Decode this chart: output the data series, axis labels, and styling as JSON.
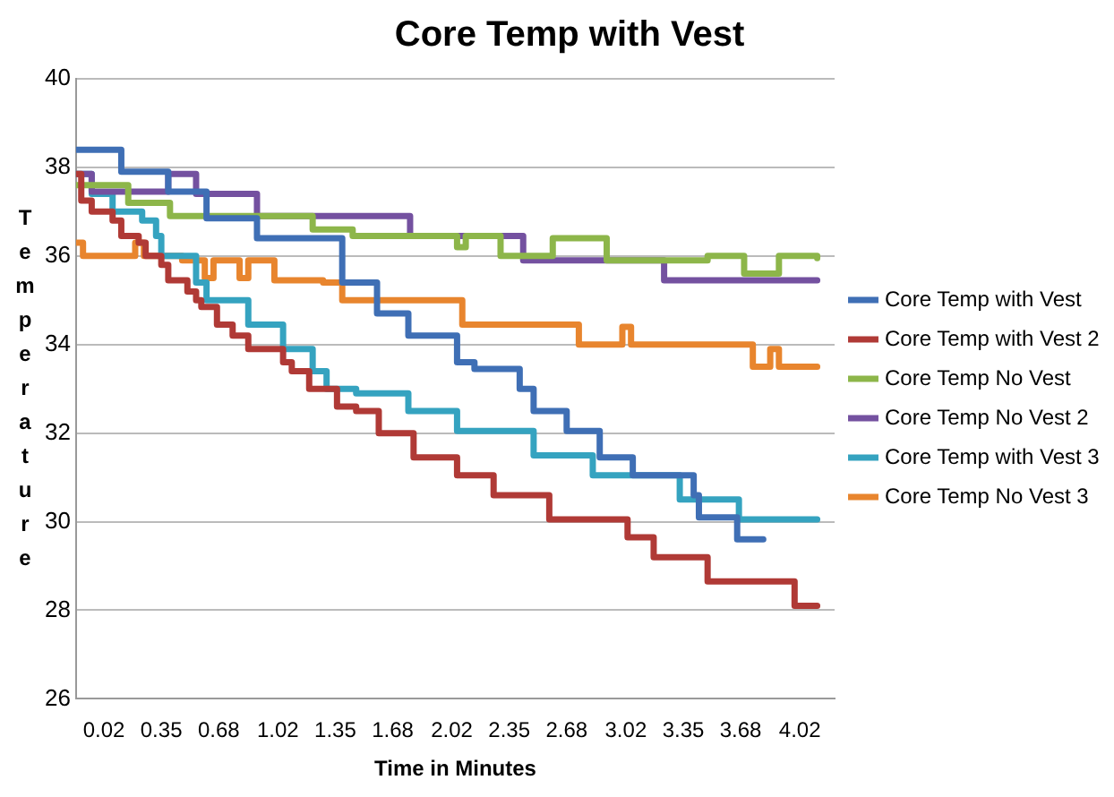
{
  "chart_data": {
    "type": "step",
    "title": "Core Temp with Vest",
    "xlabel": "Time in Minutes",
    "ylabel": "Temperature",
    "xlim": [
      -0.14,
      4.22
    ],
    "xticks": [
      0.02,
      0.35,
      0.68,
      1.02,
      1.35,
      1.68,
      2.02,
      2.35,
      2.68,
      3.02,
      3.35,
      3.68,
      4.02
    ],
    "ylim": [
      26,
      40
    ],
    "yticks": [
      26,
      28,
      30,
      32,
      34,
      36,
      38,
      40
    ],
    "grid": "y",
    "legend": "right",
    "marker": "none",
    "line_style": "solid",
    "series": [
      {
        "name": "Core Temp with Vest",
        "color": "#3f6fb5",
        "x": [
          -0.14,
          0.12,
          0.39,
          0.61,
          0.9,
          1.39,
          1.59,
          1.77,
          2.05,
          2.15,
          2.41,
          2.49,
          2.68,
          2.87,
          3.06,
          3.41,
          3.44,
          3.66,
          3.81
        ],
        "values": [
          38.4,
          37.9,
          37.45,
          36.85,
          36.4,
          35.4,
          34.7,
          34.2,
          33.6,
          33.45,
          33.0,
          32.5,
          32.05,
          31.45,
          31.05,
          30.6,
          30.1,
          29.6,
          29.6
        ]
      },
      {
        "name": "Core Temp with Vest 2",
        "color": "#b03a36",
        "x": [
          -0.14,
          -0.11,
          -0.05,
          0.07,
          0.12,
          0.22,
          0.26,
          0.35,
          0.39,
          0.5,
          0.55,
          0.58,
          0.67,
          0.76,
          0.85,
          1.05,
          1.1,
          1.2,
          1.36,
          1.47,
          1.6,
          1.8,
          2.05,
          2.26,
          2.58,
          3.03,
          3.18,
          3.49,
          3.99,
          4.12
        ],
        "values": [
          37.85,
          37.25,
          37.0,
          36.8,
          36.45,
          36.3,
          36.0,
          35.8,
          35.45,
          35.2,
          35.0,
          34.85,
          34.45,
          34.2,
          33.9,
          33.6,
          33.4,
          33.0,
          32.6,
          32.5,
          32.0,
          31.45,
          31.05,
          30.6,
          30.05,
          29.65,
          29.2,
          28.65,
          28.1,
          28.1
        ]
      },
      {
        "name": "Core Temp No Vest",
        "color": "#8db64a",
        "x": [
          -0.14,
          0.16,
          0.4,
          1.22,
          1.45,
          2.05,
          2.1,
          2.3,
          2.6,
          2.91,
          3.49,
          3.7,
          3.9,
          4.12
        ],
        "values": [
          37.6,
          37.2,
          36.9,
          36.6,
          36.45,
          36.2,
          36.45,
          36.0,
          36.4,
          35.9,
          36.0,
          35.6,
          36.0,
          35.95
        ]
      },
      {
        "name": "Core Temp No Vest 2",
        "color": "#7451a0",
        "x": [
          -0.14,
          -0.05,
          0.39,
          0.55,
          0.9,
          1.78,
          2.43,
          3.24,
          4.12
        ],
        "values": [
          37.85,
          37.45,
          37.85,
          37.4,
          36.9,
          36.45,
          35.9,
          35.45,
          35.45
        ]
      },
      {
        "name": "Core Temp with Vest 3",
        "color": "#35a3c0",
        "x": [
          -0.14,
          -0.05,
          0.07,
          0.24,
          0.32,
          0.35,
          0.55,
          0.61,
          0.85,
          1.05,
          1.22,
          1.3,
          1.47,
          1.77,
          2.05,
          2.49,
          2.83,
          3.33,
          3.67,
          4.12
        ],
        "values": [
          37.85,
          37.4,
          37.0,
          36.8,
          36.45,
          36.0,
          35.4,
          35.0,
          34.45,
          33.9,
          33.4,
          33.0,
          32.9,
          32.5,
          32.05,
          31.5,
          31.05,
          30.5,
          30.05,
          30.05
        ]
      },
      {
        "name": "Core Temp No Vest 3",
        "color": "#e8852e",
        "x": [
          -0.14,
          -0.1,
          0.2,
          0.25,
          0.47,
          0.6,
          0.65,
          0.8,
          0.85,
          1.0,
          1.28,
          1.39,
          2.08,
          2.75,
          3.0,
          3.05,
          3.75,
          3.85,
          3.9,
          4.12
        ],
        "values": [
          36.3,
          36.0,
          36.3,
          36.0,
          35.9,
          35.5,
          35.9,
          35.5,
          35.9,
          35.45,
          35.4,
          35.0,
          34.45,
          34.0,
          34.4,
          34.0,
          33.5,
          33.9,
          33.5,
          33.5
        ]
      }
    ]
  }
}
